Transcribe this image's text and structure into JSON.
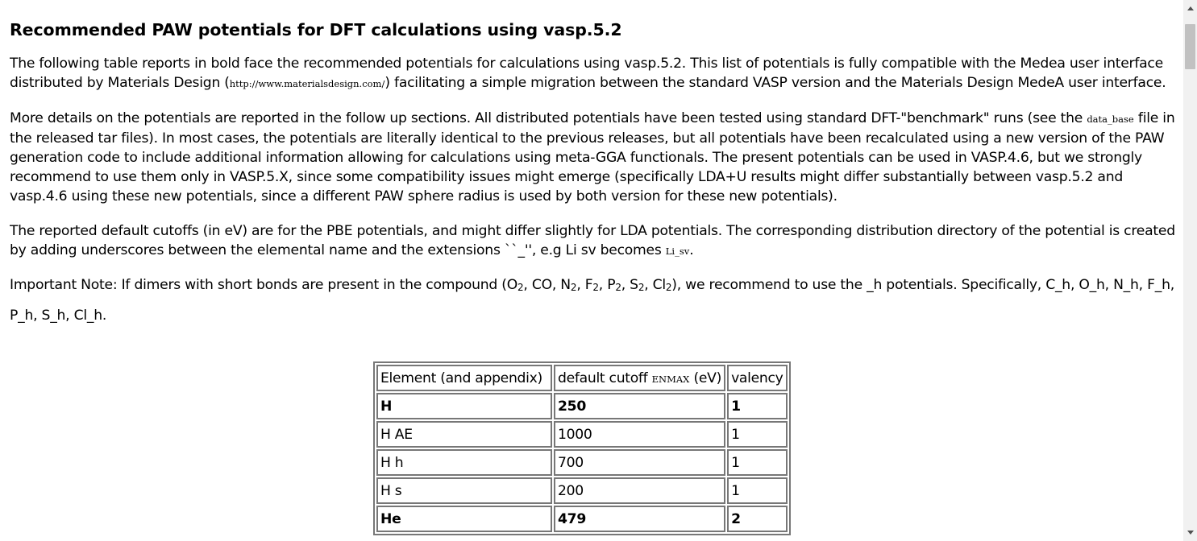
{
  "page": {
    "title": "Recommended PAW potentials for DFT calculations using vasp.5.2"
  },
  "para1": {
    "before": "The following table reports in bold face the recommended potentials for calculations using vasp.5.2. This list of potentials is fully compatible with the Medea user interface distributed by Materials Design (",
    "url": "http://www.materialsdesign.com/",
    "after": ") facilitating a simple migration between the standard VASP version and the Materials Design MedeA user interface."
  },
  "para2": {
    "before": "More details on the potentials are reported in the follow up sections. All distributed potentials have been tested using standard DFT-\"benchmark\" runs (see the ",
    "code": "data_base",
    "after": " file in the released tar files). In most cases, the potentials are literally identical to the previous releases, but all potentials have been recalculated using a new version of the PAW generation code to include additional information allowing for calculations using meta-GGA functionals. The present potentials can be used in VASP.4.6, but we strongly recommend to use them only in VASP.5.X, since some compatibility issues might emerge (specifically LDA+U results might differ substantially between vasp.5.2 and vasp.4.6 using these new potentials, since a different PAW sphere radius is used by both version for these new potentials)."
  },
  "para3": {
    "before": "The reported default cutoffs (in eV) are for the PBE potentials, and might differ slightly for LDA potentials. The corresponding distribution directory of the potential is created by adding underscores between the elemental name and the extensions ``_'', e.g Li sv becomes ",
    "code": "Li_sv",
    "after": "."
  },
  "note": {
    "t1": "Important Note: If dimers with short bonds are present in the compound (O",
    "s1": "2",
    "t2": ", CO, N",
    "s2": "2",
    "t3": ", F",
    "s3": "2",
    "t4": ", P",
    "s4": "2",
    "t5": ", S",
    "s5": "2",
    "t6": ", Cl",
    "s6": "2",
    "t7": "), we recommend to use the _h potentials. Specifically, C_h, O_h, N_h, F_h, P_h, S_h, Cl_h."
  },
  "table": {
    "headers": {
      "element": "Element (and appendix)",
      "cutoff_pre": "default cutoff ",
      "cutoff_code": "ENMAX",
      "cutoff_post": " (eV)",
      "valency": "valency"
    },
    "rows": [
      {
        "element": "H",
        "cutoff": "250",
        "valency": "1",
        "recommended": true
      },
      {
        "element": "H AE",
        "cutoff": "1000",
        "valency": "1",
        "recommended": false
      },
      {
        "element": "H h",
        "cutoff": "700",
        "valency": "1",
        "recommended": false
      },
      {
        "element": "H s",
        "cutoff": "200",
        "valency": "1",
        "recommended": false
      },
      {
        "element": "He",
        "cutoff": "479",
        "valency": "2",
        "recommended": true
      }
    ]
  }
}
